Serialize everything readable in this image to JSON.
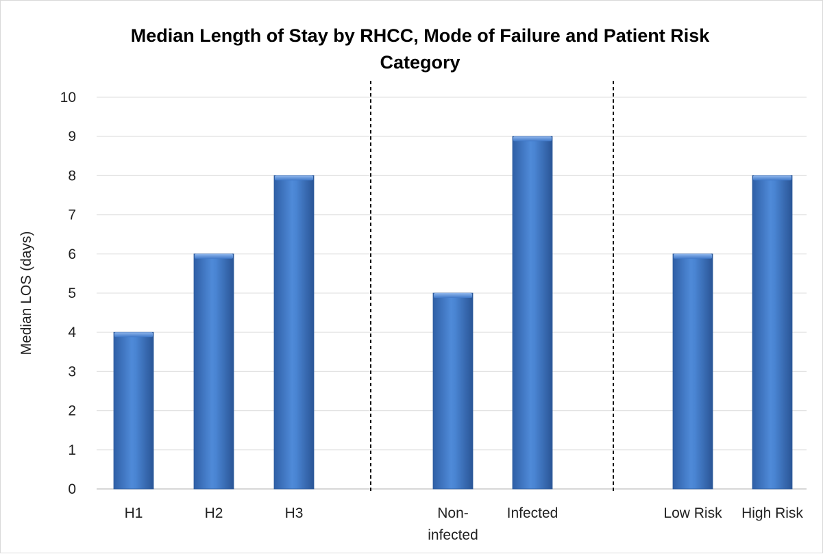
{
  "chart_data": {
    "type": "bar",
    "title_lines": [
      "Median Length of Stay by RHCC, Mode of Failure and Patient Risk",
      "Category"
    ],
    "ylabel": "Median LOS (days)",
    "xlabel": "",
    "ylim": [
      0,
      10
    ],
    "yticks": [
      "0",
      "1",
      "2",
      "3",
      "4",
      "5",
      "6",
      "7",
      "8",
      "9",
      "10"
    ],
    "grid": true,
    "bar_color": "#3F78C8",
    "groups": [
      {
        "categories": [
          [
            "H1"
          ],
          [
            "H2"
          ],
          [
            "H3"
          ]
        ],
        "values": [
          4,
          6,
          8
        ]
      },
      {
        "categories": [
          [
            "Non-",
            "infected"
          ],
          [
            "Infected"
          ]
        ],
        "values": [
          5,
          9
        ]
      },
      {
        "categories": [
          [
            "Low Risk"
          ],
          [
            "High Risk"
          ]
        ],
        "values": [
          6,
          8
        ]
      }
    ]
  }
}
